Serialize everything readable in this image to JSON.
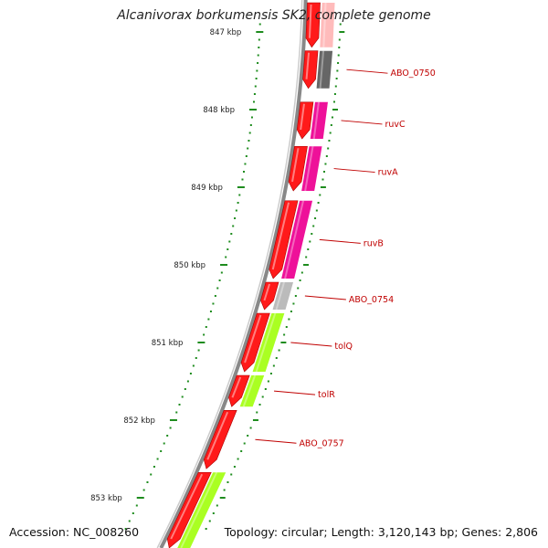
{
  "title": "Alcanivorax borkumensis SK2, complete genome",
  "accession_text": "Accession: NC_008260",
  "summary_text": "Topology: circular; Length: 3,120,143 bp; Genes: 2,806",
  "colors": {
    "cds": "#ff1a1a",
    "backbone": "#888888",
    "tick": "#1e8c1e",
    "label": "#c00000",
    "cog_dark": "#666666",
    "cog_magenta": "#ee1199",
    "cog_gray": "#bbbbbb",
    "cog_green": "#aaff22",
    "cog_pink": "#ffbbbb"
  },
  "scale": {
    "unit": "kbp",
    "ticks": [
      847,
      848,
      849,
      850,
      851,
      852,
      853
    ],
    "tick_labels": [
      "847 kbp",
      "848 kbp",
      "849 kbp",
      "850 kbp",
      "851 kbp",
      "852 kbp",
      "853 kbp"
    ]
  },
  "genes": [
    {
      "label": "",
      "start": 846.6,
      "end": 847.22,
      "strand": "-",
      "cog": "cog_pink"
    },
    {
      "label": "ABO_0750",
      "start": 847.22,
      "end": 847.75,
      "strand": "-",
      "cog": "cog_dark"
    },
    {
      "label": "ruvC",
      "start": 847.88,
      "end": 848.4,
      "strand": "-",
      "cog": "cog_magenta"
    },
    {
      "label": "ruvA",
      "start": 848.45,
      "end": 849.07,
      "strand": "-",
      "cog": "cog_magenta"
    },
    {
      "label": "ruvB",
      "start": 849.15,
      "end": 850.2,
      "strand": "-",
      "cog": "cog_magenta"
    },
    {
      "label": "ABO_0754",
      "start": 850.2,
      "end": 850.6,
      "strand": "-",
      "cog": "cog_gray"
    },
    {
      "label": "tolQ",
      "start": 850.6,
      "end": 851.4,
      "strand": "-",
      "cog": "cog_green"
    },
    {
      "label": "tolR",
      "start": 851.4,
      "end": 851.85,
      "strand": "-",
      "cog": "cog_green"
    },
    {
      "label": "ABO_0757",
      "start": 851.85,
      "end": 852.65,
      "strand": "-",
      "cog": "cog_none"
    },
    {
      "label": "",
      "start": 852.65,
      "end": 853.8,
      "strand": "-",
      "cog": "cog_green"
    }
  ]
}
